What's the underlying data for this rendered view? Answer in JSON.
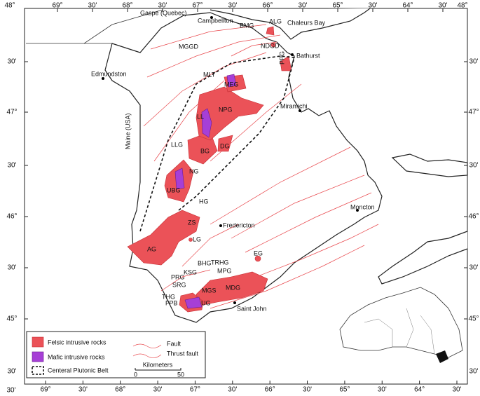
{
  "axis_labels": {
    "top": [
      "48°",
      "69°",
      "30'",
      "68°",
      "30'",
      "67°",
      "30'",
      "66°",
      "30'",
      "65°",
      "30'",
      "64°",
      "30'",
      "48°"
    ],
    "bottom": [
      "30'",
      "69°",
      "30'",
      "68°",
      "30'",
      "67°",
      "30'",
      "66°",
      "30'",
      "65°",
      "30'",
      "64°",
      "30'"
    ],
    "left": [
      "30'",
      "47°",
      "30'",
      "46°",
      "30'",
      "45°",
      "30'"
    ],
    "right": [
      "30'",
      "47°",
      "30'",
      "46°",
      "30'",
      "45°",
      "30'"
    ]
  },
  "places": [
    "Gaspe (Quebec)",
    "Campbellton",
    "BMG",
    "ALG",
    "Chaleurs Bay",
    "NDGD",
    "Bathurst",
    "PPG",
    "MGGD",
    "Edmundston",
    "MLT",
    "MEG",
    "NPG",
    "Miramichi",
    "LL",
    "LLG",
    "BG",
    "DG",
    "NG",
    "UBG",
    "HG",
    "Maine (USA)",
    "Fredericton",
    "ZS",
    "LG",
    "AG",
    "Moncton",
    "EG",
    "BHG",
    "TRHG",
    "KSG",
    "MPG",
    "PRG",
    "SRG",
    "MGS",
    "MDG",
    "THG",
    "FPB",
    "UG",
    "Saint John"
  ],
  "legend": {
    "felsic": "Felsic intrusive rocks",
    "mafic": "Mafic intrusive rocks",
    "belt": "Centeral Plutonic Belt",
    "fault": "Fault",
    "thrust_fault": "Thrust fault",
    "scale_title": "Kilometers",
    "scale_ticks": [
      0,
      50
    ]
  }
}
